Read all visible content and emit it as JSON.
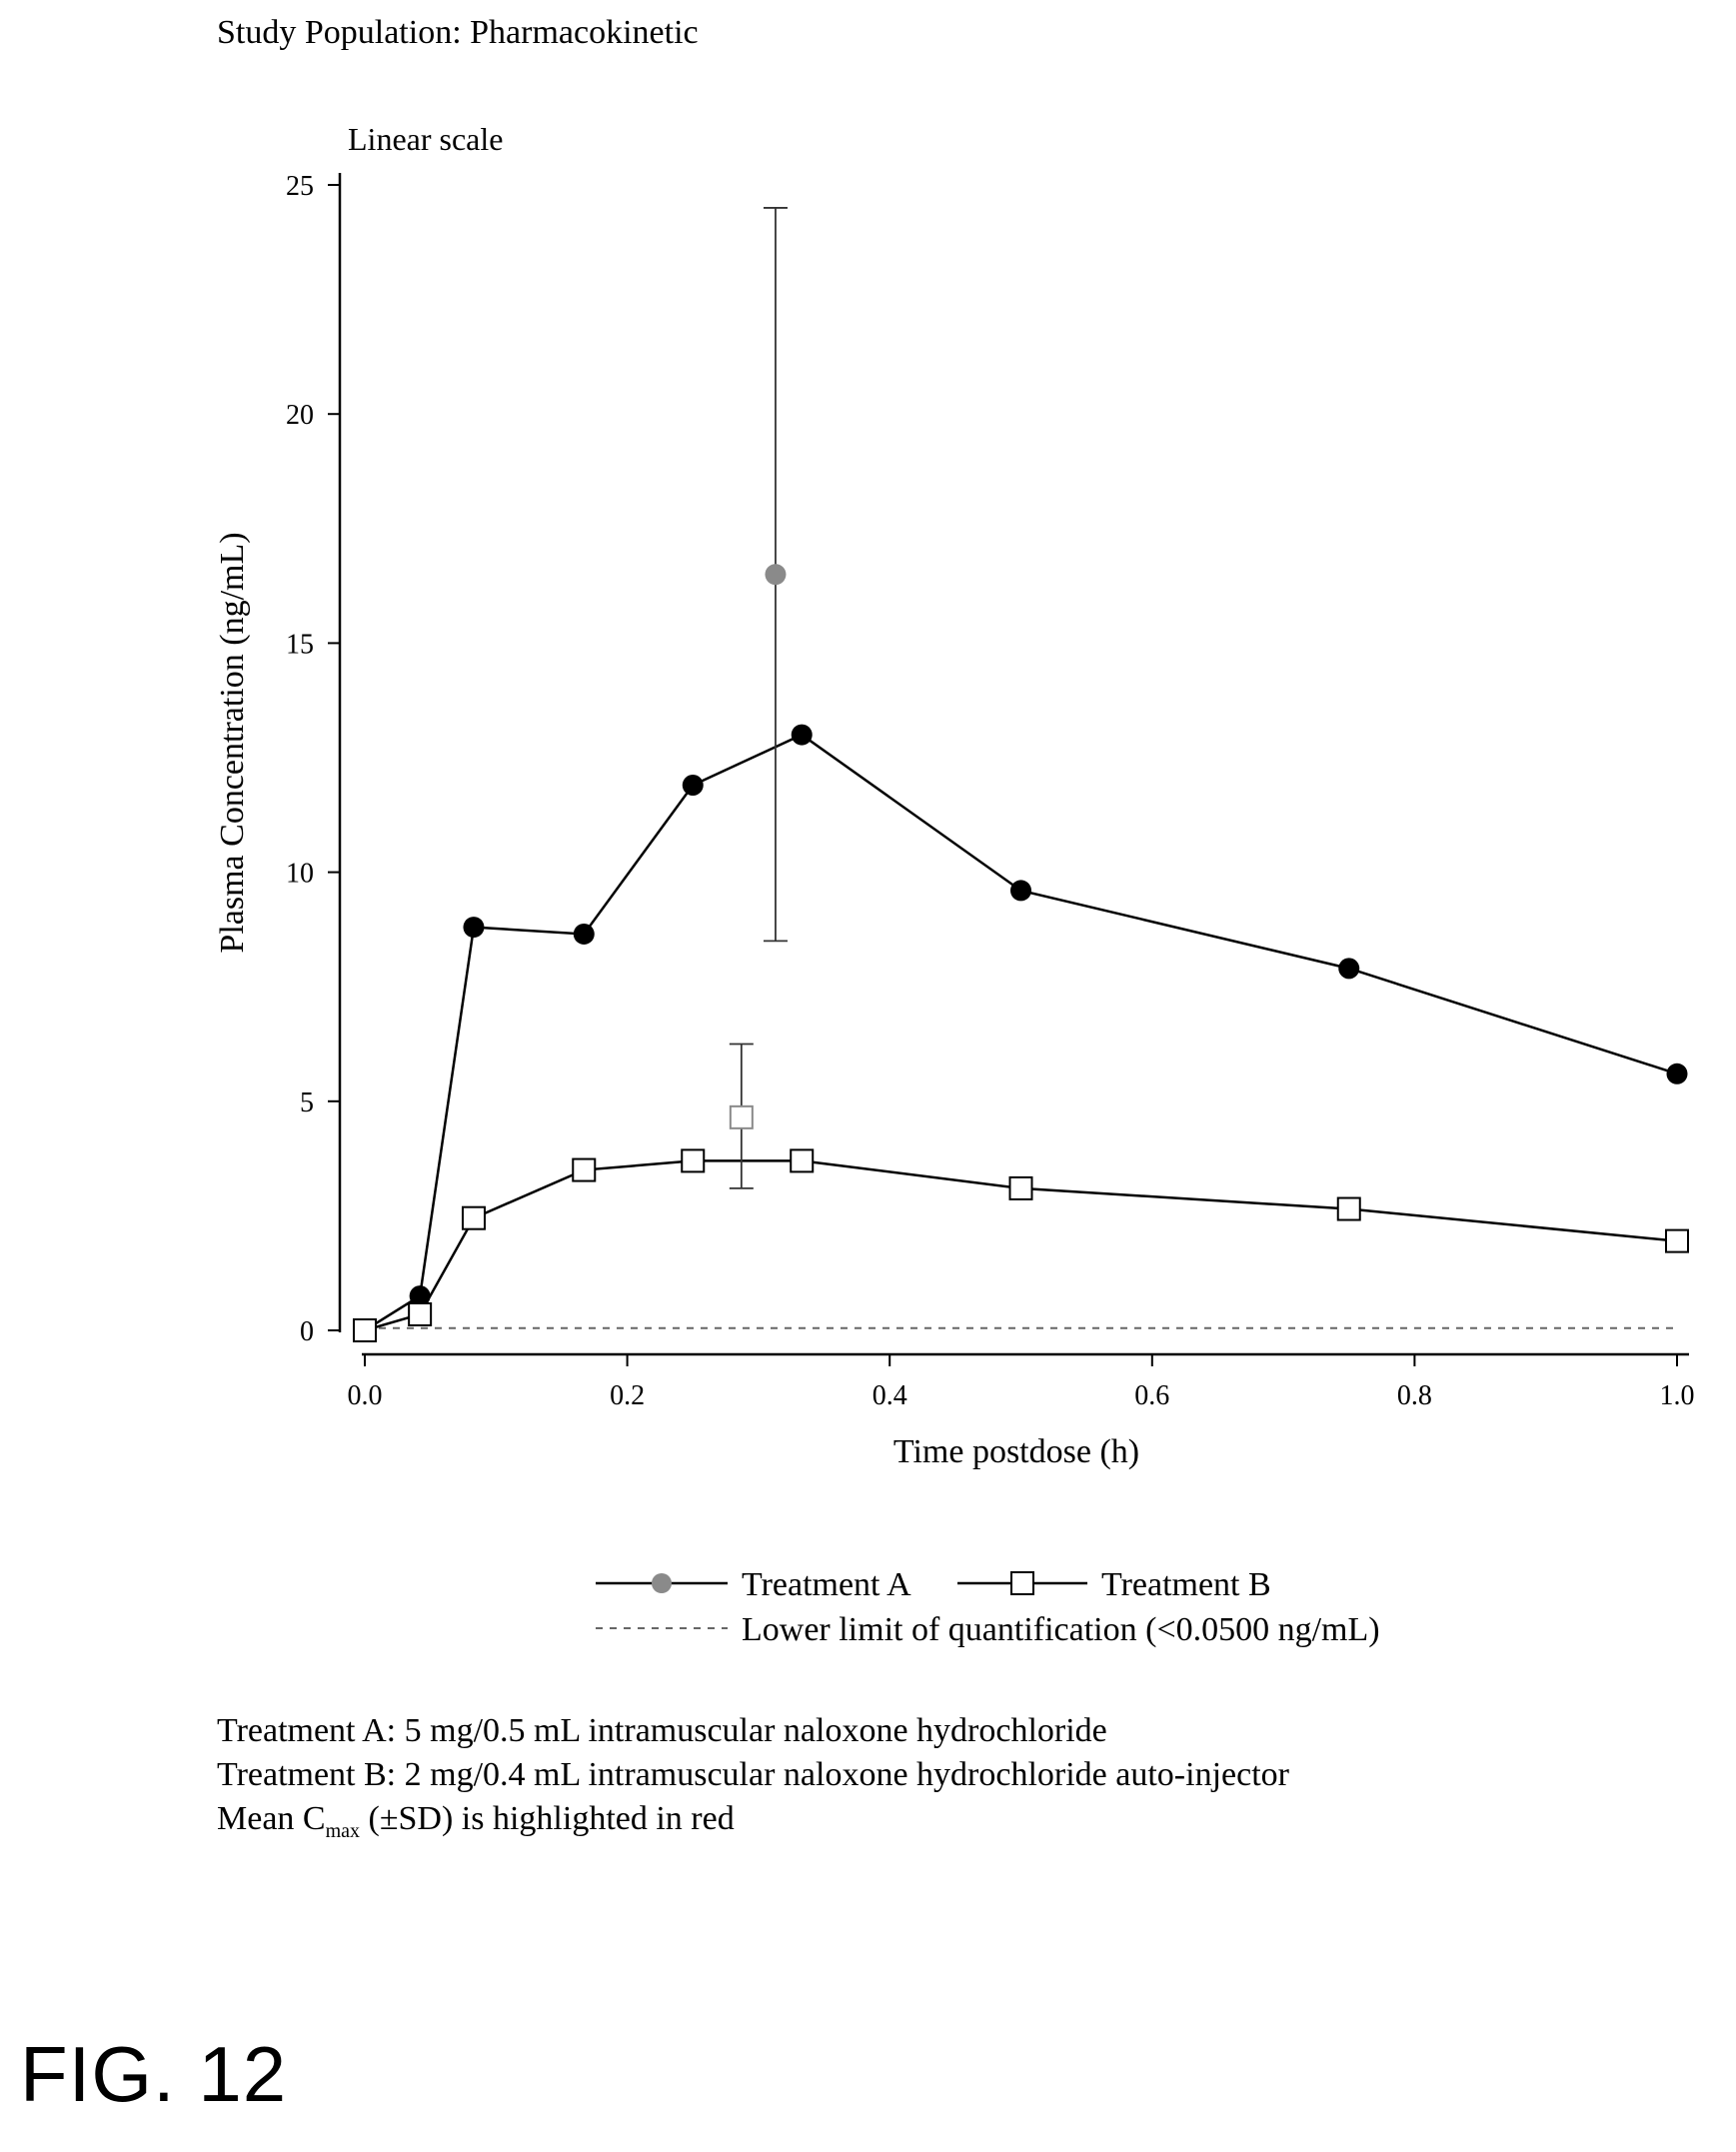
{
  "header": {
    "study_population": "Study Population: Pharmacokinetic"
  },
  "chart_data": {
    "type": "line",
    "panel_title": "Linear scale",
    "xlabel": "Time postdose (h)",
    "ylabel": "Plasma Concentration (ng/mL)",
    "xlim": [
      0.0,
      1.0
    ],
    "ylim": [
      0,
      25
    ],
    "x_ticks": [
      "0.0",
      "0.2",
      "0.4",
      "0.6",
      "0.8",
      "1.0"
    ],
    "y_ticks": [
      "0",
      "5",
      "10",
      "15",
      "20",
      "25"
    ],
    "grid": false,
    "legend_position": "bottom",
    "series": [
      {
        "name": "Treatment A",
        "marker": "filled-circle",
        "color": "#000000",
        "x": [
          0.0,
          0.042,
          0.083,
          0.167,
          0.25,
          0.333,
          0.5,
          0.75,
          1.0
        ],
        "y": [
          0.0,
          0.75,
          8.8,
          8.65,
          11.9,
          13.0,
          9.6,
          7.9,
          5.6
        ]
      },
      {
        "name": "Treatment B",
        "marker": "open-square",
        "color": "#000000",
        "x": [
          0.0,
          0.042,
          0.083,
          0.167,
          0.25,
          0.333,
          0.5,
          0.75,
          1.0
        ],
        "y": [
          0.0,
          0.35,
          2.45,
          3.5,
          3.7,
          3.7,
          3.1,
          2.65,
          1.95
        ]
      }
    ],
    "cmax": [
      {
        "series": "Treatment A",
        "marker": "filled-circle",
        "color": "#8a8a8a",
        "x": 0.313,
        "mean": 16.5,
        "sd_low": 8.5,
        "sd_high": 24.5
      },
      {
        "series": "Treatment B",
        "marker": "open-square",
        "color": "#8a8a8a",
        "x": 0.287,
        "mean": 4.65,
        "sd_low": 3.1,
        "sd_high": 6.25
      }
    ],
    "reference_line": {
      "label": "Lower limit of quantification (<0.0500 ng/mL)",
      "y": 0.05,
      "style": "dashed",
      "color": "#666666"
    },
    "legend": {
      "entries": [
        "Treatment A",
        "Treatment B"
      ],
      "reference_label": "Lower limit of quantification (<0.0500 ng/mL)",
      "treatment_a_marker_color": "#8a8a8a"
    }
  },
  "notes": {
    "line1": "Treatment A: 5 mg/0.5 mL intramuscular naloxone hydrochloride",
    "line2": "Treatment B: 2 mg/0.4 mL intramuscular naloxone hydrochloride auto-injector",
    "line3_prefix": "Mean C",
    "line3_sub": "max",
    "line3_suffix": " (±SD) is highlighted in red"
  },
  "figure_label": "FIG. 12"
}
